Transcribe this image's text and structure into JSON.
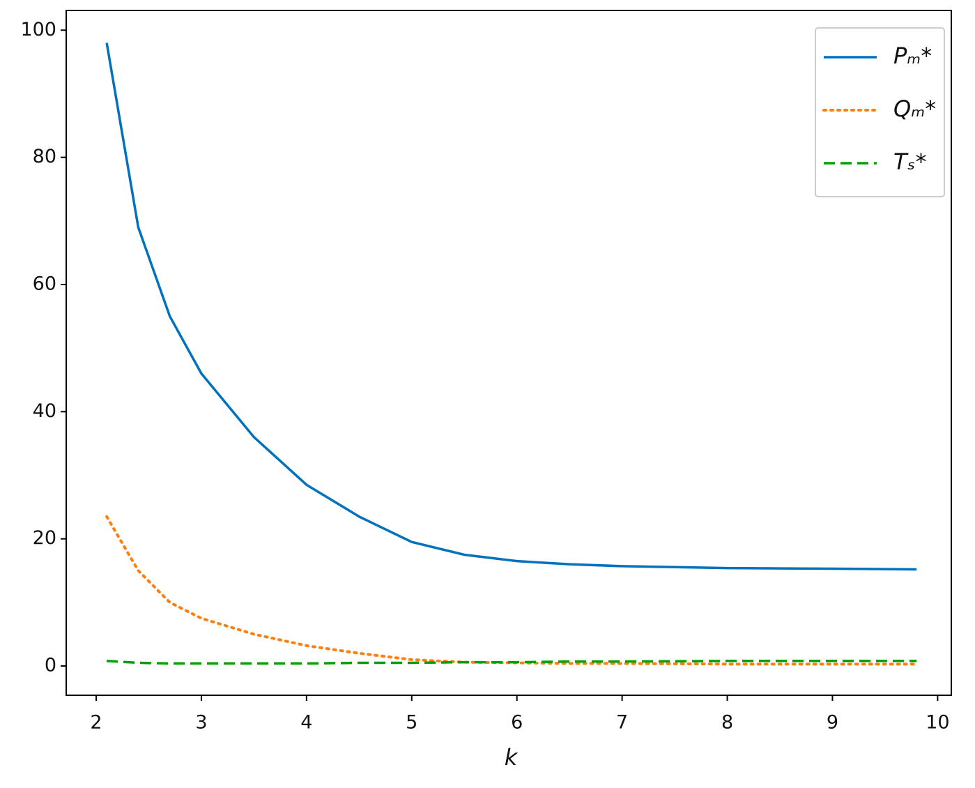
{
  "chart_data": {
    "type": "line",
    "x_label": "k",
    "x": [
      2.1,
      2.4,
      2.7,
      3,
      3.5,
      4,
      4.5,
      5,
      5.5,
      6,
      6.5,
      7,
      8,
      9,
      9.8
    ],
    "series": [
      {
        "name": "Pₘ*",
        "color": "#0072bd",
        "dash": "solid",
        "values": [
          98,
          69,
          55,
          46,
          36,
          28.5,
          23.5,
          19.5,
          17.5,
          16.5,
          16,
          15.7,
          15.4,
          15.3,
          15.2
        ]
      },
      {
        "name": "Qₘ*",
        "color": "#ff7f0e",
        "dash": "dotted",
        "values": [
          23.5,
          15,
          10,
          7.5,
          5,
          3.2,
          2,
          1,
          0.6,
          0.5,
          0.4,
          0.4,
          0.3,
          0.3,
          0.3
        ]
      },
      {
        "name": "Tₛ*",
        "color": "#00a000",
        "dash": "dashed",
        "values": [
          0.8,
          0.5,
          0.4,
          0.4,
          0.4,
          0.4,
          0.5,
          0.5,
          0.6,
          0.6,
          0.7,
          0.7,
          0.8,
          0.8,
          0.8
        ]
      }
    ],
    "xlim": [
      1.715,
      10.13
    ],
    "xticks": [
      2,
      3,
      4,
      5,
      6,
      7,
      8,
      9,
      10
    ],
    "ylim": [
      -4.6,
      103.1
    ],
    "yticks": [
      0,
      20,
      40,
      60,
      80,
      100
    ],
    "grid": false,
    "legend": "upper right"
  }
}
